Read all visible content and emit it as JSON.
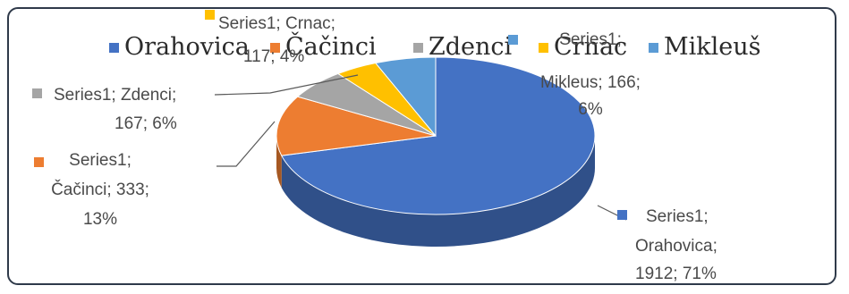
{
  "chart_data": {
    "type": "pie",
    "style": "3d",
    "series": [
      {
        "name": "Series1",
        "categories": [
          "Orahovica",
          "Čačinci",
          "Zdenci",
          "Crnac",
          "Mikleuš"
        ],
        "values": [
          1912,
          333,
          167,
          117,
          166
        ],
        "percents": [
          "71%",
          "13%",
          "6%",
          "4%",
          "6%"
        ]
      }
    ],
    "colors": [
      "#4472c4",
      "#ed7d31",
      "#a5a5a5",
      "#ffc000",
      "#5b9bd5"
    ],
    "legend": {
      "placement": "top",
      "entries": [
        "Orahovica",
        "Čačinci",
        "Zdenci",
        "Crnac",
        "Mikleuš"
      ]
    },
    "data_labels": [
      {
        "lines": [
          "Series1;",
          "Orahovica;",
          "1912; 71%"
        ]
      },
      {
        "lines": [
          "Series1;",
          "Čačinci; 333;",
          "13%"
        ]
      },
      {
        "lines": [
          "Series1; Zdenci;",
          "167; 6%"
        ]
      },
      {
        "lines": [
          "Series1; Crnac;",
          "117; 4%"
        ]
      },
      {
        "lines": [
          "Series1;",
          "Mikleus; 166;",
          "6%"
        ]
      }
    ]
  }
}
